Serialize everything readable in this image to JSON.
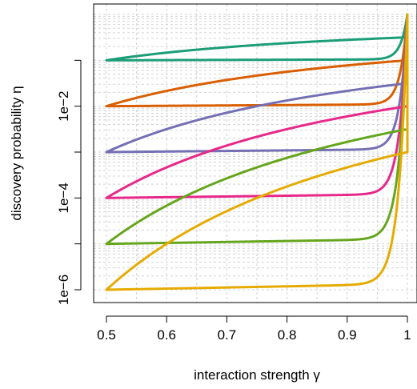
{
  "chart_data": {
    "type": "line",
    "title": "",
    "xlabel": "interaction strength γ",
    "ylabel": "discovery probability η",
    "x_scale": "linear",
    "y_scale": "log",
    "xlim": [
      0.5,
      1.0
    ],
    "ylim": [
      1e-06,
      1
    ],
    "grid": true,
    "x_ticks": [
      0.5,
      0.6,
      0.7,
      0.8,
      0.9,
      1.0
    ],
    "x_tick_labels": [
      "0.5",
      "0.6",
      "0.7",
      "0.8",
      "0.9",
      "1"
    ],
    "y_ticks": [
      1e-06,
      1e-05,
      0.0001,
      0.001,
      0.01,
      0.1
    ],
    "y_tick_labels": [
      "1e−6",
      "",
      "1e−4",
      "",
      "1e−2",
      ""
    ],
    "curve_shapes": {
      "upper": "power-law 1/γ",
      "lower": "exponential-like rise near γ = 1"
    },
    "x_at_endpoint": 1.0,
    "y_at_endpoint": 1,
    "series": [
      {
        "color": "#1B9E77",
        "eta_at_gamma_0_5": 0.1
      },
      {
        "color": "#D95F02",
        "eta_at_gamma_0_5": 0.01
      },
      {
        "color": "#7570B3",
        "eta_at_gamma_0_5": 0.001
      },
      {
        "color": "#E7298A",
        "eta_at_gamma_0_5": 0.0001
      },
      {
        "color": "#66A61E",
        "eta_at_gamma_0_5": 1e-05
      },
      {
        "color": "#E6AB02",
        "eta_at_gamma_0_5": 1e-06
      }
    ]
  }
}
